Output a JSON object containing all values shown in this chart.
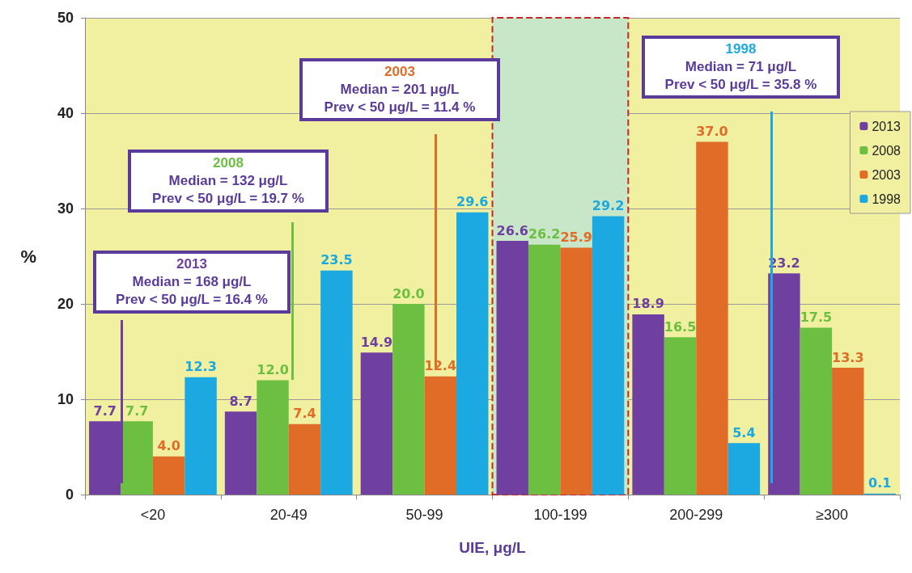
{
  "chart_data": {
    "type": "bar",
    "xlabel": "UIE, μg/L",
    "ylabel": "%",
    "categories": [
      "<20",
      "20-49",
      "50-99",
      "100-199",
      "200-299",
      "≥300"
    ],
    "series": [
      {
        "name": "2013",
        "color": "#7040a0",
        "values": [
          7.7,
          8.7,
          14.9,
          26.6,
          18.9,
          23.2
        ],
        "value_labels": [
          "7.7",
          "8.7",
          "14.9",
          "26.6",
          "18.9",
          "23.2"
        ]
      },
      {
        "name": "2008",
        "color": "#6cbf40",
        "values": [
          7.7,
          12.0,
          20.0,
          26.2,
          16.5,
          17.5
        ],
        "value_labels": [
          "7.7",
          "12.0",
          "20.0",
          "26.2",
          "16.5",
          "17.5"
        ]
      },
      {
        "name": "2003",
        "color": "#e06c28",
        "values": [
          4.0,
          7.4,
          12.4,
          25.9,
          37.0,
          13.3
        ],
        "value_labels": [
          "4.0",
          "7.4",
          "12.4",
          "25.9",
          "37.0",
          "13.3"
        ]
      },
      {
        "name": "1998",
        "color": "#1ca8e0",
        "values": [
          12.3,
          23.5,
          29.6,
          29.2,
          5.4,
          0.1
        ],
        "value_labels": [
          "12.3",
          "23.5",
          "29.6",
          "29.2",
          "5.4",
          "0.1"
        ]
      }
    ],
    "ylim": [
      0,
      50
    ],
    "yticks": [
      0,
      10,
      20,
      30,
      40,
      50
    ],
    "grid": "y",
    "legend": "right",
    "bands": [
      {
        "axis": "x",
        "from": "100-199",
        "to": "100-199",
        "color": "#c8e6c8"
      }
    ],
    "annotations": [
      "2013\nMedian = 168 μg/L\nPrev < 50 μg/L = 16.4 %",
      "2008\nMedian = 132 μg/L\nPrev < 50 μg/L = 19.7 %",
      "2003\nMedian = 201 μg/L\nPrev < 50 μg/L = 11.4 %",
      "1998\nMedian = 71 μg/L\nPrev < 50 μg/L = 35.8 %"
    ]
  }
}
